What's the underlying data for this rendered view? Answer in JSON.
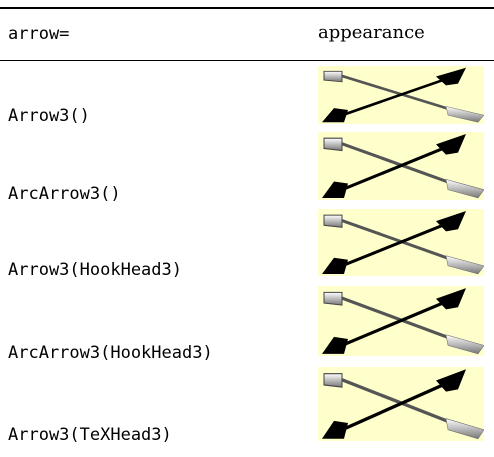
{
  "table": {
    "header": [
      "arrow=",
      "appearance"
    ],
    "rows": [
      "Arrow3()",
      "ArcArrow3()",
      "Arrow3(HookHead3)",
      "ArcArrow3(HookHead3)",
      "Arrow3(TeXHead3)"
    ]
  }
}
